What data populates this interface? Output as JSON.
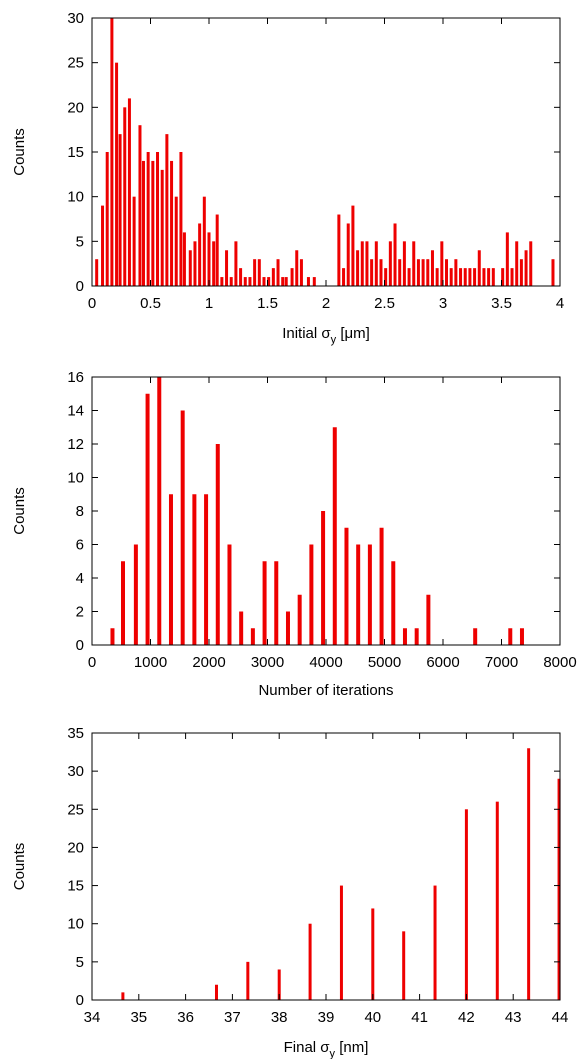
{
  "bar_color": "#ee0000",
  "chart_data": [
    {
      "type": "bar",
      "ylabel": "Counts",
      "xlabel": {
        "pre": "Initial σ",
        "sub": "y",
        "post": " [μm]"
      },
      "xlim": [
        0,
        4
      ],
      "ylim": [
        0,
        30
      ],
      "xticks": [
        "0",
        "0.5",
        "1",
        "1.5",
        "2",
        "2.5",
        "3",
        "3.5",
        "4"
      ],
      "yticks": [
        "0",
        "5",
        "10",
        "15",
        "20",
        "25",
        "30"
      ],
      "x": [
        0.04,
        0.09,
        0.13,
        0.17,
        0.21,
        0.24,
        0.28,
        0.32,
        0.36,
        0.41,
        0.44,
        0.48,
        0.52,
        0.56,
        0.6,
        0.64,
        0.68,
        0.72,
        0.76,
        0.79,
        0.84,
        0.88,
        0.92,
        0.96,
        1.0,
        1.04,
        1.07,
        1.11,
        1.15,
        1.19,
        1.23,
        1.27,
        1.31,
        1.35,
        1.39,
        1.43,
        1.47,
        1.51,
        1.55,
        1.59,
        1.63,
        1.66,
        1.71,
        1.75,
        1.79,
        1.85,
        1.9,
        2.11,
        2.15,
        2.19,
        2.23,
        2.27,
        2.31,
        2.35,
        2.39,
        2.43,
        2.47,
        2.51,
        2.55,
        2.59,
        2.63,
        2.67,
        2.71,
        2.75,
        2.79,
        2.83,
        2.87,
        2.91,
        2.95,
        2.99,
        3.03,
        3.07,
        3.11,
        3.15,
        3.19,
        3.23,
        3.27,
        3.31,
        3.35,
        3.39,
        3.43,
        3.51,
        3.55,
        3.59,
        3.63,
        3.67,
        3.71,
        3.75,
        3.94
      ],
      "values": [
        3,
        9,
        15,
        30,
        25,
        17,
        20,
        21,
        10,
        18,
        14,
        15,
        14,
        15,
        13,
        17,
        14,
        10,
        15,
        6,
        4,
        5,
        7,
        10,
        6,
        5,
        8,
        1,
        4,
        1,
        5,
        2,
        1,
        1,
        3,
        3,
        1,
        1,
        2,
        3,
        1,
        1,
        2,
        4,
        3,
        1,
        1,
        8,
        2,
        7,
        9,
        4,
        5,
        5,
        3,
        5,
        3,
        2,
        5,
        7,
        3,
        5,
        2,
        5,
        3,
        3,
        3,
        4,
        2,
        5,
        3,
        2,
        3,
        2,
        2,
        2,
        2,
        4,
        2,
        2,
        2,
        2,
        6,
        2,
        5,
        3,
        4,
        5,
        3
      ]
    },
    {
      "type": "bar",
      "ylabel": "Counts",
      "xlabel": {
        "pre": "Number of iterations",
        "sub": "",
        "post": ""
      },
      "xlim": [
        0,
        8000
      ],
      "ylim": [
        0,
        16
      ],
      "xticks": [
        "0",
        "1000",
        "2000",
        "3000",
        "4000",
        "5000",
        "6000",
        "7000",
        "8000"
      ],
      "yticks": [
        "0",
        "2",
        "4",
        "6",
        "8",
        "10",
        "12",
        "14",
        "16"
      ],
      "x": [
        350,
        530,
        750,
        950,
        1150,
        1350,
        1550,
        1750,
        1950,
        2150,
        2350,
        2550,
        2750,
        2950,
        3150,
        3350,
        3550,
        3750,
        3950,
        4150,
        4350,
        4550,
        4750,
        4950,
        5150,
        5350,
        5550,
        5750,
        6550,
        7150,
        7350
      ],
      "values": [
        1,
        5,
        6,
        15,
        16,
        9,
        14,
        9,
        9,
        12,
        6,
        2,
        1,
        5,
        5,
        2,
        3,
        6,
        8,
        13,
        7,
        6,
        6,
        7,
        5,
        1,
        1,
        3,
        1,
        1,
        1
      ]
    },
    {
      "type": "bar",
      "ylabel": "Counts",
      "xlabel": {
        "pre": "Final σ",
        "sub": "y",
        "post": " [nm]"
      },
      "xlim": [
        34,
        44
      ],
      "ylim": [
        0,
        35
      ],
      "xticks": [
        "34",
        "35",
        "36",
        "37",
        "38",
        "39",
        "40",
        "41",
        "42",
        "43",
        "44"
      ],
      "yticks": [
        "0",
        "5",
        "10",
        "15",
        "20",
        "25",
        "30",
        "35"
      ],
      "x": [
        34.66,
        36.66,
        37.33,
        38.0,
        38.66,
        39.33,
        40.0,
        40.66,
        41.33,
        42.0,
        42.66,
        43.33,
        43.98
      ],
      "values": [
        1,
        2,
        5,
        4,
        10,
        15,
        12,
        9,
        15,
        25,
        26,
        33,
        29
      ]
    }
  ]
}
